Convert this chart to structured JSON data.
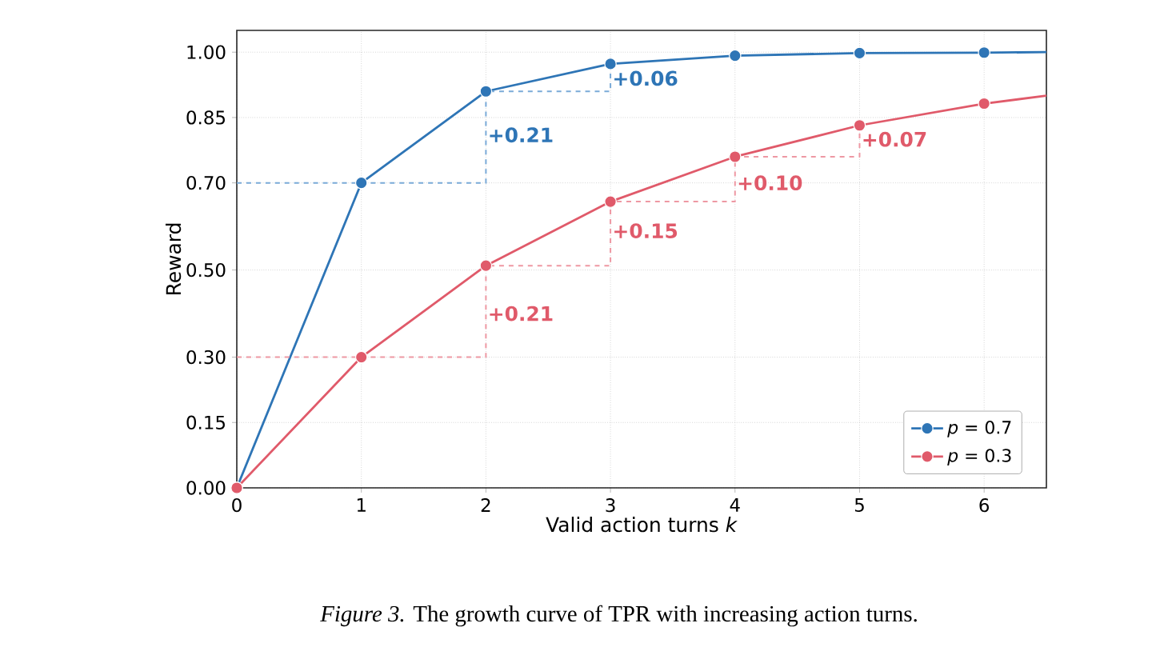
{
  "chart_data": {
    "type": "line",
    "xlabel": "Valid action turns *k*",
    "ylabel": "Reward",
    "xlim": [
      0,
      6.5
    ],
    "ylim": [
      0,
      1.05
    ],
    "xticks": [
      0,
      1,
      2,
      3,
      4,
      5,
      6
    ],
    "yticks": [
      {
        "value": 0,
        "label": "0.00"
      },
      0.15,
      {
        "value": 0.3,
        "label": "0.30"
      },
      {
        "value": 0.5,
        "label": "0.50"
      },
      {
        "value": 0.7,
        "label": "0.70"
      },
      0.85,
      {
        "value": 1,
        "label": "1.00"
      }
    ],
    "series": [
      {
        "name": "*p* = 0.7",
        "color": "#2e75b6",
        "x": [
          0,
          1,
          2,
          3,
          4,
          5,
          6,
          6.5
        ],
        "values": [
          0,
          0.7,
          0.91,
          0.973,
          0.992,
          0.998,
          0.999,
          1.0
        ]
      },
      {
        "name": "*p* = 0.3",
        "color": "#e05a6a",
        "x": [
          0,
          1,
          2,
          3,
          4,
          5,
          6,
          6.5
        ],
        "values": [
          0,
          0.3,
          0.51,
          0.657,
          0.76,
          0.832,
          0.882,
          0.9
        ]
      },
      {
        "type": "step",
        "color": "#7aaad8",
        "line_style": "dashed",
        "marker": "none",
        "x": [
          0,
          2,
          3
        ],
        "values": [
          0.7,
          0.91,
          0.973
        ]
      },
      {
        "type": "step",
        "color": "#ee98a3",
        "line_style": "dashed",
        "marker": "none",
        "x": [
          0,
          2,
          3,
          4,
          5
        ],
        "values": [
          0.3,
          0.51,
          0.657,
          0.76,
          0.832
        ]
      }
    ],
    "annotations": [
      {
        "text": "+0.06",
        "x": 3,
        "y": 0.94
      },
      {
        "text": "+0.21",
        "x": 2,
        "y": 0.81
      },
      {
        "text": "+0.21",
        "x": 2,
        "y": 0.4
      },
      {
        "text": "+0.15",
        "x": 3,
        "y": 0.59
      },
      {
        "text": "+0.10",
        "x": 4,
        "y": 0.7
      },
      {
        "text": "+0.07",
        "x": 5,
        "y": 0.8
      },
      "*Figure 3.* The growth curve of TPR with increasing action turns."
    ],
    "grid": true,
    "legend": "bottom right",
    "marker": "circle",
    "line_style": "solid"
  }
}
